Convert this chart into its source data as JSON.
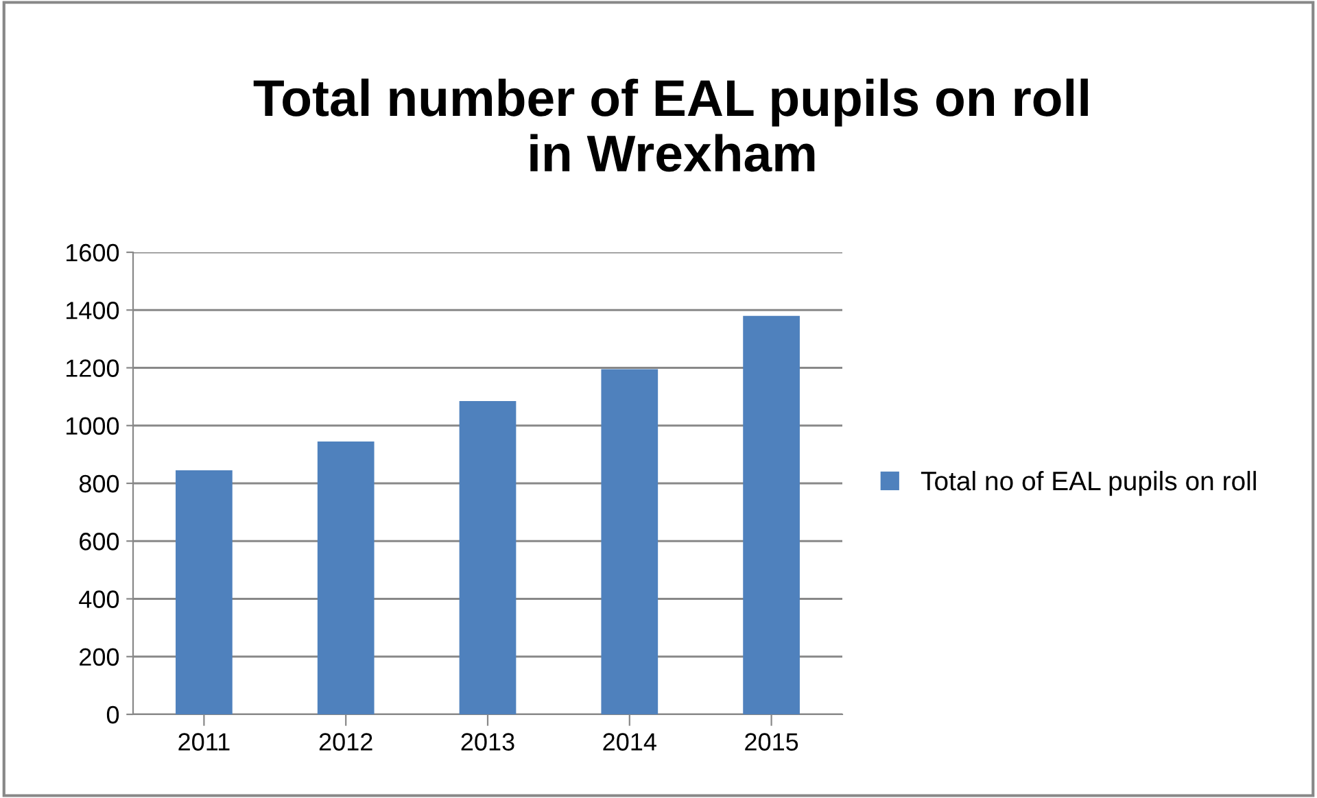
{
  "chart_data": {
    "type": "bar",
    "title": "Total number of EAL pupils on roll\nin Wrexham",
    "categories": [
      "2011",
      "2012",
      "2013",
      "2014",
      "2015"
    ],
    "series": [
      {
        "name": "Total no of EAL pupils on roll",
        "color": "#4f81bd",
        "values": [
          845,
          945,
          1085,
          1195,
          1380
        ]
      }
    ],
    "ylim": [
      0,
      1600
    ],
    "yticks": [
      0,
      200,
      400,
      600,
      800,
      1000,
      1200,
      1400,
      1600
    ],
    "grid": "y",
    "legend": "right"
  }
}
